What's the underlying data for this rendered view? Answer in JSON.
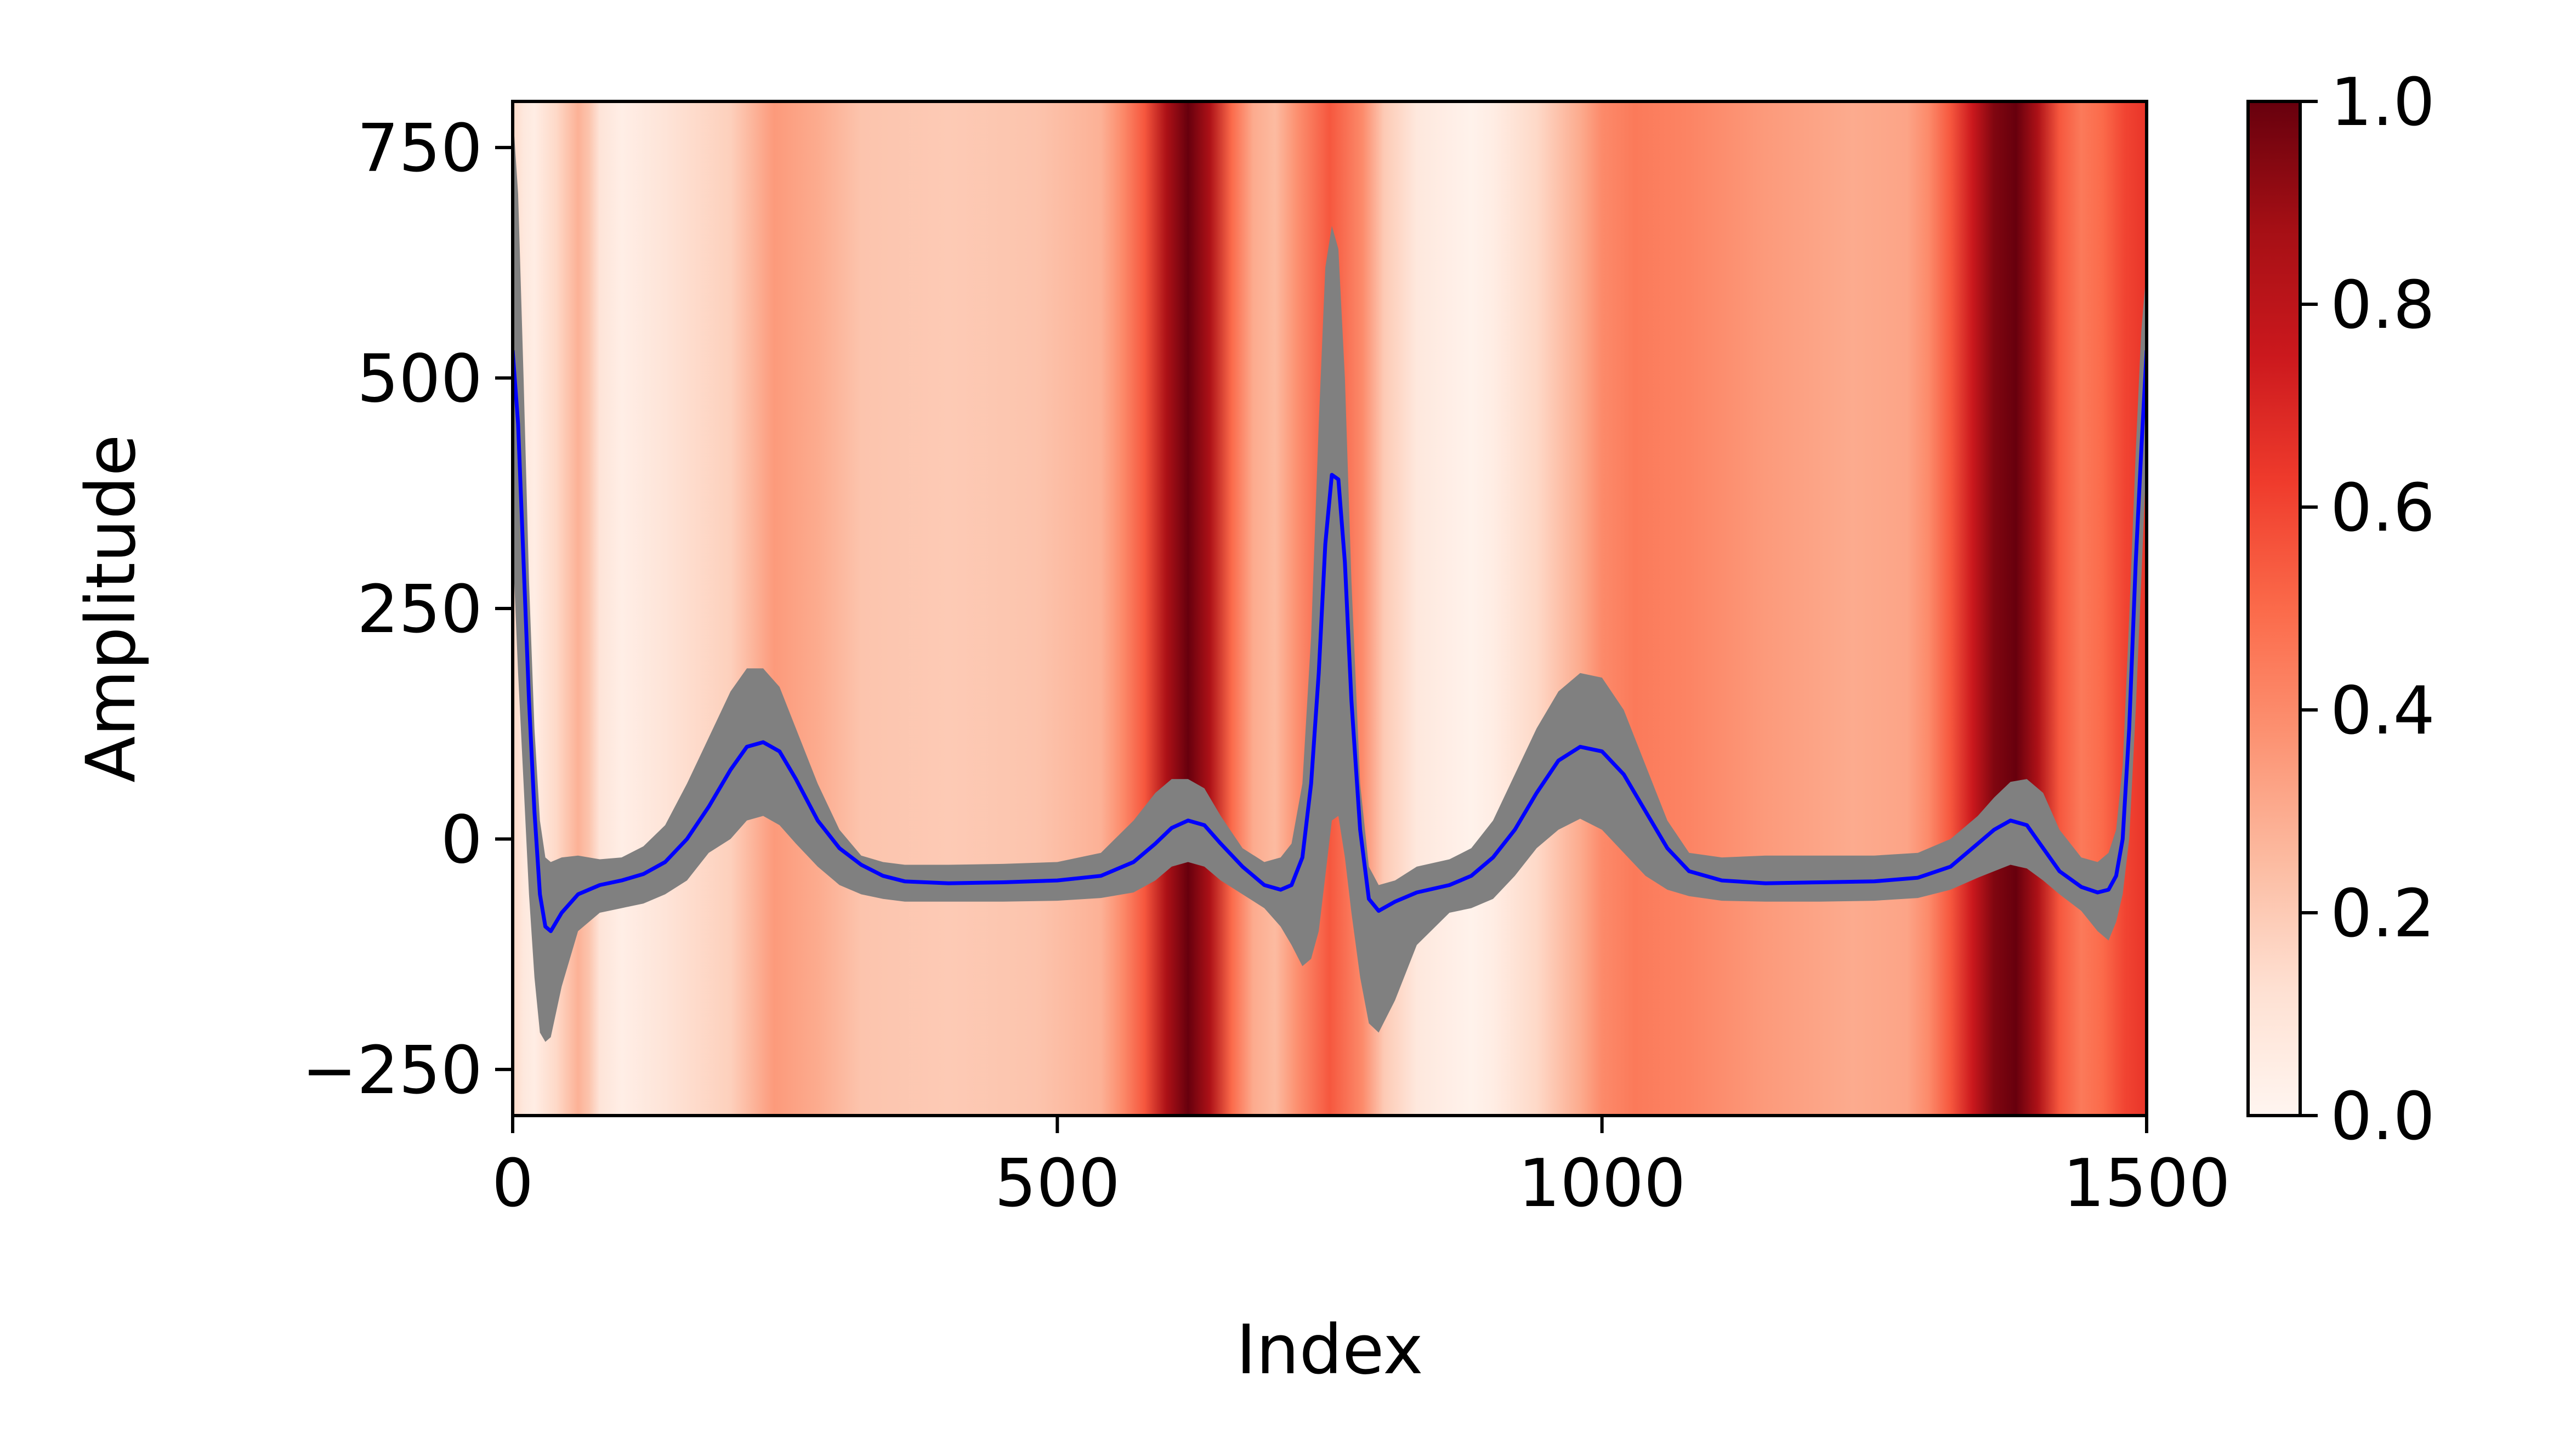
{
  "chart_data": {
    "type": "line",
    "title": "",
    "xlabel": "Index",
    "ylabel": "Amplitude",
    "xlim": [
      0,
      1500
    ],
    "ylim": [
      -300,
      800
    ],
    "xticks": [
      0,
      500,
      1000,
      1500
    ],
    "xtick_labels": [
      "0",
      "500",
      "1000",
      "1500"
    ],
    "yticks": [
      -250,
      0,
      250,
      500,
      750
    ],
    "ytick_labels": [
      "−250",
      "0",
      "250",
      "500",
      "750"
    ],
    "grid": false,
    "legend": "none",
    "colormap": "Reds",
    "colorbar": {
      "range": [
        0,
        1
      ],
      "ticks": [
        0.0,
        0.2,
        0.4,
        0.6,
        0.8,
        1.0
      ],
      "tick_labels": [
        "0.0",
        "0.2",
        "0.4",
        "0.6",
        "0.8",
        "1.0"
      ]
    },
    "heatmap_background": {
      "x": [
        0,
        10,
        20,
        40,
        60,
        70,
        80,
        100,
        140,
        200,
        240,
        280,
        320,
        400,
        480,
        540,
        560,
        580,
        600,
        620,
        640,
        660,
        680,
        700,
        720,
        750,
        780,
        800,
        830,
        860,
        880,
        900,
        940,
        980,
        1000,
        1030,
        1080,
        1150,
        1230,
        1280,
        1300,
        1320,
        1340,
        1360,
        1380,
        1400,
        1420,
        1440,
        1460,
        1480,
        1500
      ],
      "values": [
        0.15,
        0.08,
        0.05,
        0.15,
        0.28,
        0.22,
        0.1,
        0.04,
        0.1,
        0.18,
        0.35,
        0.3,
        0.22,
        0.2,
        0.22,
        0.28,
        0.4,
        0.55,
        0.85,
        1.0,
        0.85,
        0.5,
        0.3,
        0.25,
        0.38,
        0.55,
        0.4,
        0.2,
        0.08,
        0.04,
        0.02,
        0.05,
        0.15,
        0.3,
        0.4,
        0.45,
        0.42,
        0.35,
        0.3,
        0.32,
        0.4,
        0.55,
        0.75,
        0.95,
        1.0,
        0.85,
        0.55,
        0.45,
        0.5,
        0.6,
        0.65
      ]
    },
    "series": [
      {
        "name": "",
        "color": "#0000ff",
        "x": [
          0,
          5,
          10,
          15,
          20,
          25,
          30,
          35,
          45,
          60,
          80,
          100,
          120,
          140,
          160,
          180,
          200,
          215,
          230,
          245,
          260,
          280,
          300,
          320,
          340,
          360,
          400,
          450,
          500,
          540,
          570,
          590,
          605,
          620,
          635,
          650,
          670,
          690,
          705,
          715,
          725,
          733,
          740,
          746,
          752,
          758,
          764,
          770,
          778,
          786,
          795,
          810,
          830,
          860,
          880,
          900,
          920,
          940,
          960,
          980,
          1000,
          1020,
          1040,
          1060,
          1080,
          1110,
          1150,
          1200,
          1250,
          1290,
          1320,
          1345,
          1360,
          1375,
          1390,
          1405,
          1420,
          1440,
          1455,
          1465,
          1472,
          1478,
          1484,
          1490,
          1495,
          1500
        ],
        "y": [
          530,
          450,
          300,
          150,
          30,
          -60,
          -95,
          -100,
          -80,
          -60,
          -50,
          -45,
          -38,
          -25,
          0,
          35,
          75,
          100,
          105,
          95,
          65,
          20,
          -10,
          -28,
          -40,
          -46,
          -48,
          -47,
          -45,
          -40,
          -25,
          -5,
          12,
          20,
          15,
          -5,
          -30,
          -50,
          -55,
          -50,
          -20,
          60,
          180,
          320,
          395,
          390,
          300,
          150,
          10,
          -65,
          -78,
          -68,
          -58,
          -50,
          -40,
          -20,
          10,
          50,
          85,
          100,
          95,
          70,
          30,
          -10,
          -35,
          -45,
          -48,
          -47,
          -46,
          -42,
          -30,
          -5,
          10,
          20,
          15,
          -10,
          -35,
          -52,
          -58,
          -55,
          -40,
          0,
          120,
          300,
          420,
          530
        ]
      }
    ],
    "band": {
      "color": "#808080",
      "x": [
        0,
        5,
        10,
        15,
        20,
        25,
        30,
        35,
        45,
        60,
        80,
        100,
        120,
        140,
        160,
        180,
        200,
        215,
        230,
        245,
        260,
        280,
        300,
        320,
        340,
        360,
        400,
        450,
        500,
        540,
        570,
        590,
        605,
        620,
        635,
        650,
        670,
        690,
        705,
        715,
        725,
        733,
        740,
        746,
        752,
        758,
        764,
        770,
        778,
        786,
        795,
        810,
        830,
        860,
        880,
        900,
        920,
        940,
        960,
        980,
        1000,
        1020,
        1040,
        1060,
        1080,
        1110,
        1150,
        1200,
        1250,
        1290,
        1320,
        1345,
        1360,
        1375,
        1390,
        1405,
        1420,
        1440,
        1455,
        1465,
        1472,
        1478,
        1484,
        1490,
        1495,
        1500
      ],
      "upper": [
        790,
        700,
        500,
        280,
        120,
        20,
        -20,
        -25,
        -20,
        -18,
        -22,
        -20,
        -8,
        15,
        60,
        110,
        160,
        185,
        185,
        165,
        120,
        60,
        10,
        -18,
        -25,
        -28,
        -28,
        -27,
        -25,
        -15,
        20,
        50,
        65,
        65,
        55,
        25,
        -10,
        -25,
        -20,
        -5,
        60,
        220,
        450,
        620,
        665,
        640,
        500,
        280,
        60,
        -30,
        -50,
        -45,
        -30,
        -22,
        -10,
        20,
        70,
        120,
        160,
        180,
        175,
        140,
        80,
        20,
        -15,
        -20,
        -18,
        -18,
        -18,
        -15,
        0,
        25,
        45,
        62,
        65,
        50,
        10,
        -20,
        -25,
        -15,
        10,
        80,
        240,
        420,
        550,
        620
      ],
      "lower": [
        320,
        180,
        60,
        -60,
        -150,
        -210,
        -220,
        -215,
        -160,
        -100,
        -80,
        -75,
        -70,
        -60,
        -45,
        -15,
        0,
        20,
        25,
        15,
        -5,
        -30,
        -50,
        -60,
        -65,
        -68,
        -68,
        -68,
        -67,
        -64,
        -58,
        -45,
        -30,
        -25,
        -30,
        -45,
        -60,
        -75,
        -95,
        -115,
        -138,
        -130,
        -100,
        -40,
        20,
        25,
        -20,
        -80,
        -150,
        -200,
        -210,
        -175,
        -115,
        -80,
        -75,
        -65,
        -40,
        -10,
        10,
        22,
        10,
        -15,
        -40,
        -55,
        -62,
        -67,
        -68,
        -68,
        -67,
        -64,
        -55,
        -42,
        -35,
        -28,
        -32,
        -45,
        -60,
        -78,
        -100,
        -110,
        -90,
        -60,
        0,
        140,
        280,
        420
      ]
    }
  }
}
